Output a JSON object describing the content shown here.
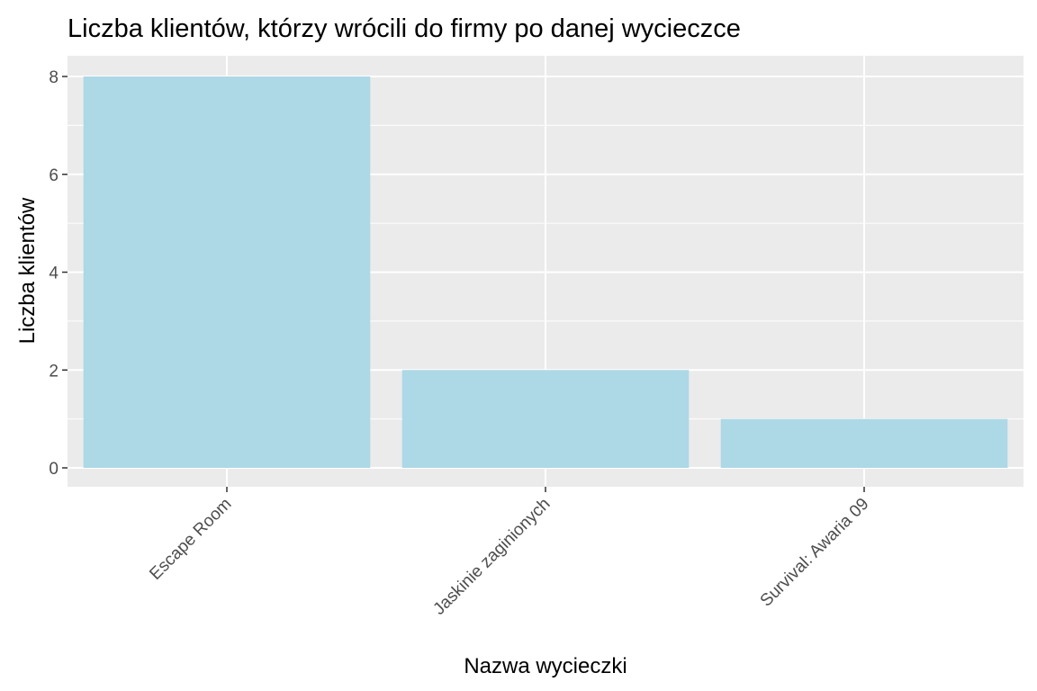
{
  "chart_data": {
    "type": "bar",
    "title": "Liczba klientów, którzy wrócili do firmy po danej wycieczce",
    "xlabel": "Nazwa wycieczki",
    "ylabel": "Liczba klientów",
    "categories": [
      "Escape Room",
      "Jaskinie zaginionych",
      "Survival: Awaria 09"
    ],
    "values": [
      8,
      2,
      1
    ],
    "ylim": [
      0,
      8
    ],
    "yticks": [
      0,
      2,
      4,
      6,
      8
    ],
    "grid": true,
    "legend": "none",
    "colors": {
      "bar": "#add8e6",
      "panel": "#ebebeb",
      "grid": "#ffffff",
      "tick": "#333333"
    }
  }
}
